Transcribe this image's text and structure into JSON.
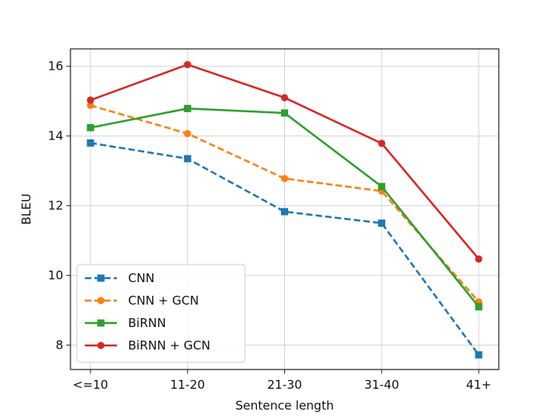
{
  "chart_data": {
    "type": "line",
    "title": "",
    "xlabel": "Sentence length",
    "ylabel": "BLEU",
    "categories": [
      "<=10",
      "11-20",
      "21-30",
      "31-40",
      "41+"
    ],
    "ylim": [
      7.3,
      16.5
    ],
    "yticks": [
      8,
      10,
      12,
      14,
      16
    ],
    "grid": true,
    "legend_position": "bottom-left",
    "series": [
      {
        "name": "CNN",
        "values": [
          13.8,
          13.35,
          11.83,
          11.5,
          7.72
        ],
        "color": "#1f77b4",
        "line_style": "dashed",
        "marker": "square"
      },
      {
        "name": "CNN + GCN",
        "values": [
          14.88,
          14.07,
          12.78,
          12.42,
          9.24
        ],
        "color": "#ff7f0e",
        "line_style": "dashed",
        "marker": "circle"
      },
      {
        "name": "BiRNN",
        "values": [
          14.24,
          14.79,
          14.66,
          12.55,
          9.1
        ],
        "color": "#2ca02c",
        "line_style": "solid",
        "marker": "square"
      },
      {
        "name": "BiRNN + GCN",
        "values": [
          15.03,
          16.05,
          15.1,
          13.79,
          10.47
        ],
        "color": "#d62728",
        "line_style": "solid",
        "marker": "circle"
      }
    ]
  }
}
